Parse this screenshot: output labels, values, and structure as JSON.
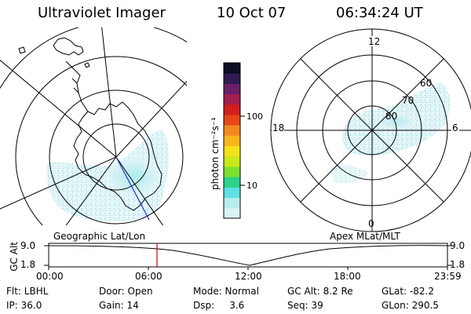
{
  "header": {
    "title": "Ultraviolet Imager",
    "date": "10 Oct 07",
    "time": "06:34:24 UT"
  },
  "colorbar": {
    "unit_label": "photon cm⁻²s⁻¹",
    "ticks": [
      "100",
      "10"
    ],
    "colors": [
      "#d9f3f5",
      "#b9ecef",
      "#5fe0e4",
      "#29d38a",
      "#7ce02d",
      "#c9e81a",
      "#f3e31a",
      "#f7b51e",
      "#f38a1e",
      "#e8461a",
      "#d11f1f",
      "#a31f4f",
      "#6a1f6a",
      "#2f1a52",
      "#0d0d26"
    ]
  },
  "left_panel": {
    "caption": "Geographic Lat/Lon"
  },
  "right_panel": {
    "caption": "Apex MLat/MLT",
    "mlt_labels": {
      "top": "12",
      "left": "18",
      "right": "6",
      "bottom": "0"
    },
    "lat_labels": [
      "80",
      "70",
      "60"
    ]
  },
  "timeline": {
    "axis_label_line1": "GC",
    "axis_label_line2": "Alt",
    "y_max": "9.0",
    "y_min": "1.8",
    "time_ticks": [
      "00:00",
      "06:00",
      "12:00",
      "18:00",
      "23:59"
    ],
    "current_marker_time": "06:34"
  },
  "footer": {
    "filter": "Flt: LBHL",
    "ip": "IP: 36.0",
    "door": "Door: Open",
    "gain": "Gain: 14",
    "mode": "Mode: Normal",
    "dsp": "Dsp:     3.6",
    "gc_alt": "GC Alt: 8.2 Re",
    "seq": "Seq: 39",
    "glat": "GLat: -82.2",
    "glon": "GLon: 290.5"
  }
}
